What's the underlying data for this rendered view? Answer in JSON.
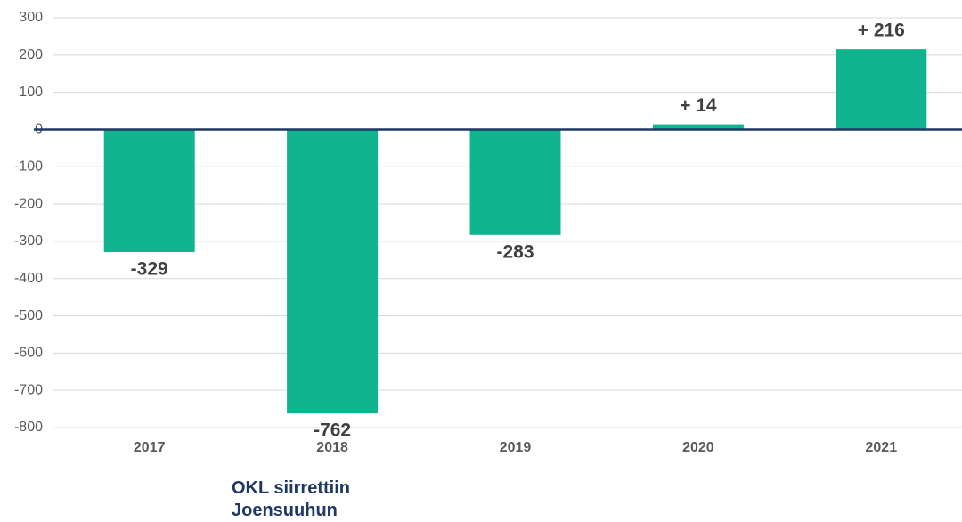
{
  "chart_data": {
    "type": "bar",
    "categories": [
      "2017",
      "2018",
      "2019",
      "2020",
      "2021"
    ],
    "values": [
      -329,
      -762,
      -283,
      14,
      216
    ],
    "value_labels": [
      "-329",
      "-762",
      "-283",
      "+ 14",
      "+ 216"
    ],
    "color": "#10b48e",
    "ylim": [
      -800,
      300
    ],
    "yticks": [
      300,
      200,
      100,
      0,
      -100,
      -200,
      -300,
      -400,
      -500,
      -600,
      -700,
      -800
    ],
    "grid": true,
    "annotation": "OKL siirrettiin Joensuuhun"
  }
}
